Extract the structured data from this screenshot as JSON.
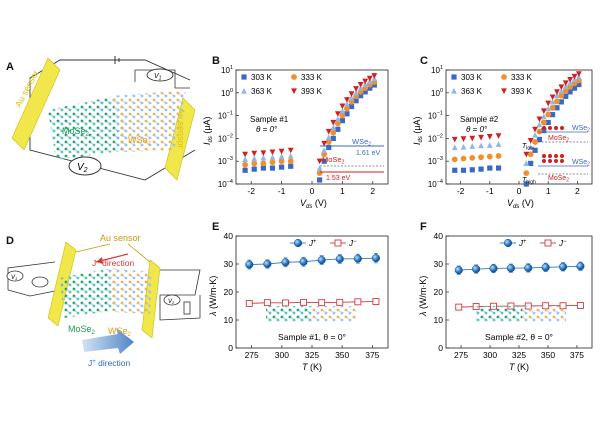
{
  "panels": {
    "A": {
      "letter": "A",
      "au_sensor_left": "Au sensor",
      "au_sensor_right": "Au sensor",
      "mos2": "MoSe",
      "mos2_sub": "2",
      "wse2": "WSe",
      "wse2_sub": "2",
      "v1": "V",
      "v1_sub": "1",
      "v2": "V",
      "v2_sub": "2"
    },
    "D": {
      "letter": "D",
      "au_sensor": "Au sensor",
      "jminus": "J",
      "jminus_sup": "−",
      "jminus_rest": " direction",
      "jplus": "J",
      "jplus_sup": "+",
      "jplus_rest": " direction",
      "mos2": "MoSe",
      "mos2_sub": "2",
      "wse2": "WSe",
      "wse2_sub": "2",
      "v1": "V",
      "v1_sub": "1",
      "v2": "V",
      "v2_sub": "2"
    }
  },
  "chart_data": [
    {
      "id": "B",
      "letter": "B",
      "type": "scatter",
      "yscale": "log",
      "xlabel": "V",
      "xlabel_sub": "ds",
      "xlabel_unit": " (V)",
      "ylabel": "I",
      "ylabel_sub": "ds",
      "ylabel_unit": " (μA)",
      "xlim": [
        -2.5,
        2.5
      ],
      "ylim_exp": [
        -4,
        1
      ],
      "xticks": [
        -2,
        -1,
        0,
        1,
        2
      ],
      "yticks_exp": [
        -4,
        -3,
        -2,
        -1,
        0,
        1
      ],
      "annotation": "Sample #1",
      "annotation2": "θ = 0°",
      "band_labels": {
        "top": "WSe",
        "top_sub": "2",
        "top_val": "1.61 eV",
        "bottom": "MoSe",
        "bottom_sub": "2",
        "bottom_val": "1.53 eV"
      },
      "series": [
        {
          "name": "303 K",
          "color": "#3a68c8",
          "marker": "square",
          "x": [
            -2.2,
            -1.9,
            -1.6,
            -1.3,
            -1.0,
            -0.7,
            0.25,
            0.4,
            0.55,
            0.7,
            0.85,
            1.0,
            1.15,
            1.3,
            1.45,
            1.6,
            1.75,
            1.9,
            2.05
          ],
          "y": [
            0.0004,
            0.00045,
            0.0005,
            0.0005,
            0.00055,
            0.0006,
            0.00015,
            0.001,
            0.004,
            0.01,
            0.025,
            0.06,
            0.12,
            0.25,
            0.45,
            0.75,
            1.1,
            1.6,
            2.2
          ]
        },
        {
          "name": "333 K",
          "color": "#f0902a",
          "marker": "circle",
          "x": [
            -2.2,
            -1.9,
            -1.6,
            -1.3,
            -1.0,
            -0.7,
            0.25,
            0.4,
            0.55,
            0.7,
            0.85,
            1.0,
            1.15,
            1.3,
            1.45,
            1.6,
            1.75,
            1.9,
            2.05
          ],
          "y": [
            0.0007,
            0.0008,
            0.0008,
            0.0009,
            0.001,
            0.001,
            0.0003,
            0.002,
            0.007,
            0.018,
            0.045,
            0.1,
            0.2,
            0.4,
            0.7,
            1.1,
            1.6,
            2.3,
            3.0
          ]
        },
        {
          "name": "363 K",
          "color": "#8fb8e8",
          "marker": "triangle",
          "x": [
            -2.2,
            -1.9,
            -1.6,
            -1.3,
            -1.0,
            -0.7,
            0.25,
            0.4,
            0.55,
            0.7,
            0.85,
            1.0,
            1.15,
            1.3,
            1.45,
            1.6,
            1.75,
            1.9,
            2.05
          ],
          "y": [
            0.0012,
            0.0013,
            0.0014,
            0.0015,
            0.0016,
            0.0017,
            0.0005,
            0.003,
            0.011,
            0.03,
            0.07,
            0.16,
            0.32,
            0.6,
            1.0,
            1.6,
            2.3,
            3.2,
            4.2
          ]
        },
        {
          "name": "393 K",
          "color": "#d22020",
          "marker": "triangle-down",
          "x": [
            -2.2,
            -1.9,
            -1.6,
            -1.3,
            -1.0,
            -0.7,
            0.25,
            0.4,
            0.55,
            0.7,
            0.85,
            1.0,
            1.15,
            1.3,
            1.45,
            1.6,
            1.75,
            1.9,
            2.05
          ],
          "y": [
            0.002,
            0.0022,
            0.0023,
            0.0025,
            0.0027,
            0.003,
            0.001,
            0.006,
            0.02,
            0.05,
            0.12,
            0.26,
            0.5,
            0.9,
            1.5,
            2.3,
            3.2,
            4.3,
            5.6
          ]
        }
      ]
    },
    {
      "id": "C",
      "letter": "C",
      "type": "scatter",
      "yscale": "log",
      "xlabel": "V",
      "xlabel_sub": "ds",
      "xlabel_unit": " (V)",
      "ylabel": "I",
      "ylabel_sub": "ds",
      "ylabel_unit": " (μA)",
      "xlim": [
        -2.5,
        2.5
      ],
      "ylim_exp": [
        -4,
        1
      ],
      "xticks": [
        -2,
        -1,
        0,
        1,
        2
      ],
      "yticks_exp": [
        -4,
        -3,
        -2,
        -1,
        0,
        1
      ],
      "annotation": "Sample #2",
      "annotation2": "θ = 0°",
      "band_labels": {
        "wse": "WSe",
        "wse_sub": "2",
        "mose": "MoSe",
        "mose_sub": "2",
        "tlow": "T",
        "tlow_sub": "low",
        "thigh": "T",
        "thigh_sub": "high"
      },
      "series": [
        {
          "name": "303 K",
          "color": "#3a68c8",
          "marker": "square",
          "x": [
            -2.2,
            -1.9,
            -1.6,
            -1.3,
            -1.0,
            -0.7,
            0.25,
            0.4,
            0.55,
            0.7,
            0.85,
            1.0,
            1.15,
            1.3,
            1.45,
            1.6,
            1.75,
            1.9,
            2.05
          ],
          "y": [
            0.0004,
            0.0004,
            0.00042,
            0.00045,
            0.0005,
            0.0005,
            0.0001,
            0.0008,
            0.003,
            0.009,
            0.022,
            0.05,
            0.11,
            0.22,
            0.4,
            0.7,
            1.1,
            1.6,
            2.3
          ]
        },
        {
          "name": "333 K",
          "color": "#f0902a",
          "marker": "circle",
          "x": [
            -2.2,
            -1.9,
            -1.6,
            -1.3,
            -1.0,
            -0.7,
            0.25,
            0.4,
            0.55,
            0.7,
            0.85,
            1.0,
            1.15,
            1.3,
            1.45,
            1.6,
            1.75,
            1.9,
            2.05
          ],
          "y": [
            0.0012,
            0.0013,
            0.0014,
            0.0015,
            0.0016,
            0.0017,
            0.0003,
            0.002,
            0.007,
            0.02,
            0.05,
            0.11,
            0.22,
            0.42,
            0.75,
            1.2,
            1.8,
            2.6,
            3.5
          ]
        },
        {
          "name": "363 K",
          "color": "#8fb8e8",
          "marker": "triangle",
          "x": [
            -2.2,
            -1.9,
            -1.6,
            -1.3,
            -1.0,
            -0.7,
            0.25,
            0.4,
            0.55,
            0.7,
            0.85,
            1.0,
            1.15,
            1.3,
            1.45,
            1.6,
            1.75,
            1.9,
            2.05
          ],
          "y": [
            0.004,
            0.0042,
            0.0045,
            0.0048,
            0.005,
            0.0055,
            0.0008,
            0.004,
            0.014,
            0.04,
            0.09,
            0.2,
            0.4,
            0.75,
            1.2,
            1.9,
            2.7,
            3.8,
            5.0
          ]
        },
        {
          "name": "393 K",
          "color": "#d22020",
          "marker": "triangle-down",
          "x": [
            -2.2,
            -1.9,
            -1.6,
            -1.3,
            -1.0,
            -0.7,
            0.25,
            0.4,
            0.55,
            0.7,
            0.85,
            1.0,
            1.15,
            1.3,
            1.45,
            1.6,
            1.75,
            1.9,
            2.05
          ],
          "y": [
            0.009,
            0.0095,
            0.01,
            0.011,
            0.012,
            0.013,
            0.002,
            0.008,
            0.025,
            0.07,
            0.16,
            0.35,
            0.65,
            1.1,
            1.8,
            2.7,
            3.8,
            5.2,
            6.8
          ]
        }
      ]
    },
    {
      "id": "E",
      "letter": "E",
      "type": "scatter",
      "xlabel": "T",
      "xlabel_unit": " (K)",
      "ylabel": "λ",
      "ylabel_unit": " (W/m·K)",
      "xlim": [
        262,
        388
      ],
      "ylim": [
        0,
        40
      ],
      "xticks": [
        275,
        300,
        325,
        350,
        375
      ],
      "yticks": [
        0,
        10,
        20,
        30,
        40
      ],
      "annotation": "Sample #1, θ = 0°",
      "series": [
        {
          "name": "J",
          "name_sup": "+",
          "color": "#2e7cc8",
          "marker": "ball",
          "x": [
            273,
            288,
            303,
            318,
            333,
            348,
            363,
            378
          ],
          "y": [
            29.8,
            30.0,
            30.6,
            30.8,
            31.4,
            31.8,
            31.9,
            32.1
          ],
          "err": [
            1.6,
            1.5,
            1.6,
            1.6,
            1.6,
            1.6,
            1.6,
            1.7
          ]
        },
        {
          "name": "J",
          "name_sup": "−",
          "color": "#d23c3c",
          "marker": "open-square",
          "x": [
            273,
            288,
            303,
            318,
            333,
            348,
            363,
            378
          ],
          "y": [
            15.9,
            16.2,
            16.1,
            16.3,
            16.2,
            16.3,
            16.5,
            16.6
          ],
          "err": [
            0.8,
            0.8,
            0.8,
            0.8,
            0.8,
            0.8,
            0.8,
            0.8
          ]
        }
      ]
    },
    {
      "id": "F",
      "letter": "F",
      "type": "scatter",
      "xlabel": "T",
      "xlabel_unit": " (K)",
      "ylabel": "λ",
      "ylabel_unit": " (W/m·K)",
      "xlim": [
        262,
        388
      ],
      "ylim": [
        0,
        40
      ],
      "xticks": [
        275,
        300,
        325,
        350,
        375
      ],
      "yticks": [
        0,
        10,
        20,
        30,
        40
      ],
      "annotation": "Sample #2, θ = 0°",
      "series": [
        {
          "name": "J",
          "name_sup": "+",
          "color": "#2e7cc8",
          "marker": "ball",
          "x": [
            273,
            288,
            303,
            318,
            333,
            348,
            363,
            378
          ],
          "y": [
            27.8,
            28.2,
            28.4,
            28.5,
            28.6,
            28.8,
            29.0,
            29.2
          ],
          "err": [
            1.5,
            1.5,
            1.5,
            1.5,
            1.5,
            1.5,
            1.5,
            1.5
          ]
        },
        {
          "name": "J",
          "name_sup": "−",
          "color": "#d23c3c",
          "marker": "open-square",
          "x": [
            273,
            288,
            303,
            318,
            333,
            348,
            363,
            378
          ],
          "y": [
            14.6,
            14.8,
            14.9,
            15.0,
            15.0,
            15.1,
            15.1,
            15.2
          ],
          "err": [
            0.7,
            0.7,
            0.7,
            0.7,
            0.7,
            0.7,
            0.7,
            0.7
          ]
        }
      ]
    }
  ]
}
